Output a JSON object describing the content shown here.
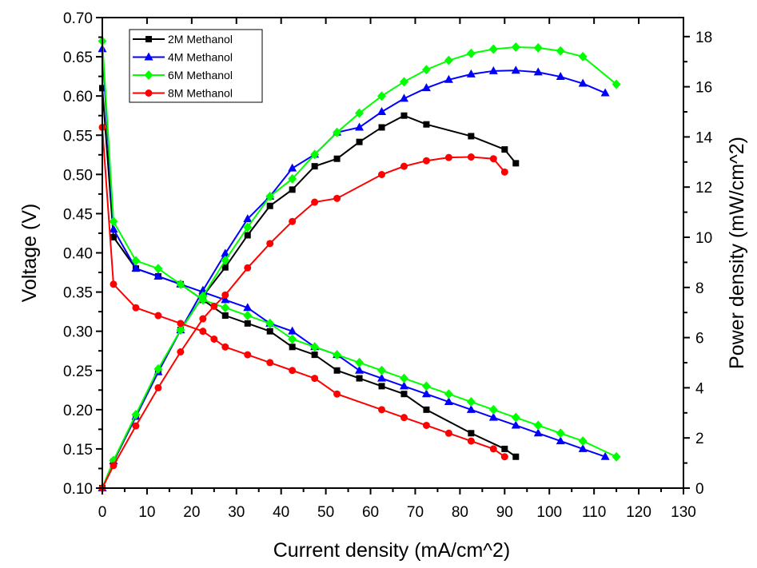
{
  "chart_data": {
    "type": "line",
    "title": "",
    "xlabel": "Current density (mA/cm^2)",
    "ylabel": "Voltage (V)",
    "y2label": "Power density (mW/cm^2)",
    "xlim": [
      0,
      130
    ],
    "ylim": [
      0.1,
      0.7
    ],
    "y2lim": [
      0,
      19
    ],
    "x_ticks": [
      0,
      10,
      20,
      30,
      40,
      50,
      60,
      70,
      80,
      90,
      100,
      110,
      120,
      130
    ],
    "x_tick_labels": [
      "0",
      "10",
      "20",
      "30",
      "40",
      "50",
      "60",
      "70",
      "80",
      "90",
      "100",
      "110",
      "120",
      "130"
    ],
    "y_ticks": [
      0.1,
      0.15,
      0.2,
      0.25,
      0.3,
      0.35,
      0.4,
      0.45,
      0.5,
      0.55,
      0.6,
      0.65,
      0.7
    ],
    "y_tick_labels": [
      "0.10",
      "0.15",
      "0.20",
      "0.25",
      "0.30",
      "0.35",
      "0.40",
      "0.45",
      "0.50",
      "0.55",
      "0.60",
      "0.65",
      "0.70"
    ],
    "y2_ticks": [
      0,
      2,
      4,
      6,
      8,
      10,
      12,
      14,
      16,
      18
    ],
    "y2_tick_labels": [
      "0",
      "2",
      "4",
      "6",
      "8",
      "10",
      "12",
      "14",
      "16",
      "18"
    ],
    "grid": false,
    "legend_position": "top-left",
    "legend": [
      "2M Methanol",
      "4M Methanol",
      "6M Methanol",
      "8M Methanol"
    ],
    "series": [
      {
        "name": "2M Methanol",
        "color": "#000000",
        "marker": "square",
        "voltage": {
          "x": [
            0,
            2.5,
            7.5,
            12.5,
            17.5,
            22.5,
            27.5,
            32.5,
            37.5,
            42.5,
            47.5,
            52.5,
            57.5,
            62.5,
            67.5,
            72.5,
            82.5,
            90,
            92.5
          ],
          "y": [
            0.61,
            0.42,
            0.38,
            0.37,
            0.36,
            0.34,
            0.32,
            0.31,
            0.3,
            0.28,
            0.27,
            0.25,
            0.24,
            0.23,
            0.22,
            0.2,
            0.17,
            0.15,
            0.14
          ]
        },
        "power": {
          "x": [
            0,
            2.5,
            7.5,
            12.5,
            17.5,
            22.5,
            27.5,
            32.5,
            37.5,
            42.5,
            47.5,
            52.5,
            57.5,
            62.5,
            67.5,
            72.5,
            82.5,
            90,
            92.5
          ],
          "y": [
            0,
            1.05,
            2.85,
            4.63,
            6.3,
            7.65,
            8.8,
            10.08,
            11.25,
            11.9,
            12.83,
            13.13,
            13.8,
            14.38,
            14.85,
            14.5,
            14.03,
            13.5,
            12.95
          ]
        }
      },
      {
        "name": "4M Methanol",
        "color": "#0000ff",
        "marker": "triangle",
        "voltage": {
          "x": [
            0,
            2.5,
            7.5,
            12.5,
            17.5,
            22.5,
            27.5,
            32.5,
            37.5,
            42.5,
            47.5,
            52.5,
            57.5,
            62.5,
            67.5,
            72.5,
            77.5,
            82.5,
            87.5,
            92.5,
            97.5,
            102.5,
            107.5,
            112.5
          ],
          "y": [
            0.66,
            0.43,
            0.38,
            0.37,
            0.36,
            0.35,
            0.34,
            0.33,
            0.31,
            0.3,
            0.28,
            0.27,
            0.25,
            0.24,
            0.23,
            0.22,
            0.21,
            0.2,
            0.19,
            0.18,
            0.17,
            0.16,
            0.15,
            0.14
          ]
        },
        "power": {
          "x": [
            0,
            2.5,
            7.5,
            12.5,
            17.5,
            22.5,
            27.5,
            32.5,
            37.5,
            42.5,
            47.5,
            52.5,
            57.5,
            62.5,
            67.5,
            72.5,
            77.5,
            82.5,
            87.5,
            92.5,
            97.5,
            102.5,
            107.5,
            112.5
          ],
          "y": [
            0,
            1.08,
            2.85,
            4.63,
            6.3,
            7.88,
            9.35,
            10.73,
            11.63,
            12.75,
            13.3,
            14.18,
            14.38,
            15.0,
            15.53,
            15.95,
            16.28,
            16.5,
            16.63,
            16.65,
            16.58,
            16.4,
            16.13,
            15.75
          ]
        }
      },
      {
        "name": "6M Methanol",
        "color": "#00ff00",
        "marker": "diamond",
        "voltage": {
          "x": [
            0,
            2.5,
            7.5,
            12.5,
            17.5,
            22.5,
            27.5,
            32.5,
            37.5,
            42.5,
            47.5,
            52.5,
            57.5,
            62.5,
            67.5,
            72.5,
            77.5,
            82.5,
            87.5,
            92.5,
            97.5,
            102.5,
            107.5,
            115
          ],
          "y": [
            0.67,
            0.44,
            0.39,
            0.38,
            0.36,
            0.34,
            0.33,
            0.32,
            0.31,
            0.29,
            0.28,
            0.27,
            0.26,
            0.25,
            0.24,
            0.23,
            0.22,
            0.21,
            0.2,
            0.19,
            0.18,
            0.17,
            0.16,
            0.14
          ]
        },
        "power": {
          "x": [
            0,
            2.5,
            7.5,
            12.5,
            17.5,
            22.5,
            27.5,
            32.5,
            37.5,
            42.5,
            47.5,
            52.5,
            57.5,
            62.5,
            67.5,
            72.5,
            77.5,
            82.5,
            87.5,
            92.5,
            97.5,
            102.5,
            107.5,
            115
          ],
          "y": [
            0,
            1.1,
            2.93,
            4.75,
            6.3,
            7.65,
            9.08,
            10.4,
            11.63,
            12.33,
            13.3,
            14.18,
            14.95,
            15.63,
            16.2,
            16.68,
            17.05,
            17.33,
            17.5,
            17.58,
            17.55,
            17.43,
            17.2,
            16.1
          ]
        }
      },
      {
        "name": "8M Methanol",
        "color": "#ff0000",
        "marker": "circle",
        "voltage": {
          "x": [
            0,
            2.5,
            7.5,
            12.5,
            17.5,
            22.5,
            25,
            27.5,
            32.5,
            37.5,
            42.5,
            47.5,
            52.5,
            62.5,
            67.5,
            72.5,
            77.5,
            82.5,
            87.5,
            90
          ],
          "y": [
            0.56,
            0.36,
            0.33,
            0.32,
            0.31,
            0.3,
            0.29,
            0.28,
            0.27,
            0.26,
            0.25,
            0.24,
            0.22,
            0.2,
            0.19,
            0.18,
            0.17,
            0.16,
            0.15,
            0.14
          ]
        },
        "power": {
          "x": [
            0,
            2.5,
            7.5,
            12.5,
            17.5,
            22.5,
            25,
            27.5,
            32.5,
            37.5,
            42.5,
            47.5,
            52.5,
            62.5,
            67.5,
            72.5,
            77.5,
            82.5,
            87.5,
            90
          ],
          "y": [
            0,
            0.9,
            2.48,
            4.0,
            5.43,
            6.75,
            7.25,
            7.7,
            8.78,
            9.75,
            10.63,
            11.4,
            11.55,
            12.5,
            12.83,
            13.05,
            13.18,
            13.2,
            13.13,
            12.6
          ]
        }
      }
    ]
  }
}
